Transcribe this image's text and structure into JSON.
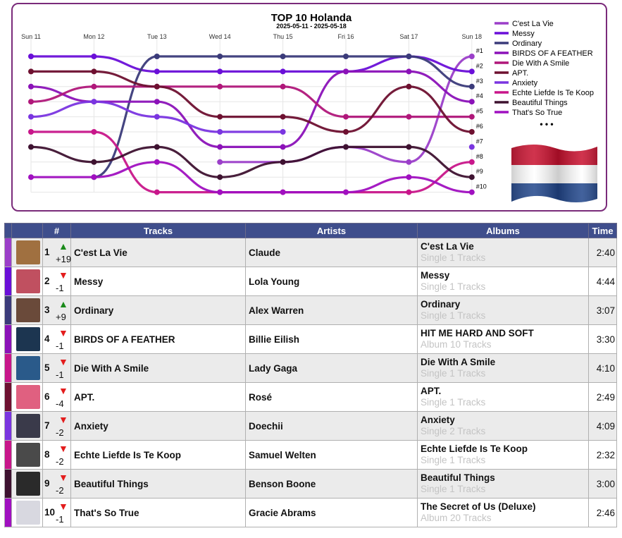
{
  "chart_data": {
    "type": "line",
    "title": "TOP 10 Holanda",
    "subtitle": "2025-05-11 - 2025-05-18",
    "x": [
      "Sun 11",
      "Mon 12",
      "Tue 13",
      "Wed 14",
      "Thu 15",
      "Fri 16",
      "Sat 17",
      "Sun 18"
    ],
    "rank_labels": [
      "#1",
      "#2",
      "#3",
      "#4",
      "#5",
      "#6",
      "#7",
      "#8",
      "#9",
      "#10"
    ],
    "legend_more": "• • •",
    "series": [
      {
        "name": "C'est La Vie",
        "color": "#9b3fc9",
        "ranks": [
          null,
          null,
          null,
          8,
          8,
          7,
          8,
          1
        ]
      },
      {
        "name": "Messy",
        "color": "#6a0fd8",
        "ranks": [
          1,
          1,
          2,
          2,
          2,
          2,
          1,
          2
        ]
      },
      {
        "name": "Ordinary",
        "color": "#3b3b7a",
        "ranks": [
          null,
          9,
          1,
          1,
          1,
          1,
          1,
          3
        ]
      },
      {
        "name": "BIRDS OF A FEATHER",
        "color": "#8b12b8",
        "ranks": [
          3,
          4,
          4,
          7,
          7,
          2,
          2,
          4
        ]
      },
      {
        "name": "Die With A Smile",
        "color": "#b0177a",
        "ranks": [
          4,
          3,
          3,
          3,
          3,
          5,
          5,
          5
        ]
      },
      {
        "name": "APT.",
        "color": "#6e1030",
        "ranks": [
          2,
          2,
          3,
          5,
          5,
          6,
          3,
          6
        ]
      },
      {
        "name": "Anxiety",
        "color": "#7a35e0",
        "ranks": [
          5,
          4,
          5,
          6,
          6,
          null,
          null,
          7
        ]
      },
      {
        "name": "Echte Liefde Is Te Koop",
        "color": "#c8168a",
        "ranks": [
          6,
          6,
          10,
          10,
          10,
          10,
          10,
          8
        ]
      },
      {
        "name": "Beautiful Things",
        "color": "#3e1230",
        "ranks": [
          7,
          8,
          7,
          9,
          8,
          7,
          7,
          9
        ]
      },
      {
        "name": "That's So True",
        "color": "#a010c0",
        "ranks": [
          9,
          9,
          8,
          10,
          10,
          10,
          9,
          10
        ]
      }
    ]
  },
  "table": {
    "headers": {
      "num": "#",
      "tracks": "Tracks",
      "artists": "Artists",
      "albums": "Albums",
      "time": "Time"
    },
    "rows": [
      {
        "rank": "1",
        "dir": "up",
        "delta": "+19",
        "track": "C'est La Vie",
        "artist": "Claude",
        "album": "C'est La Vie",
        "album_sub": "Single 1 Tracks",
        "time": "2:40",
        "color": "#9b3fc9",
        "cover": "#a07040"
      },
      {
        "rank": "2",
        "dir": "down",
        "delta": "-1",
        "track": "Messy",
        "artist": "Lola Young",
        "album": "Messy",
        "album_sub": "Single 1 Tracks",
        "time": "4:44",
        "color": "#6a0fd8",
        "cover": "#c05060"
      },
      {
        "rank": "3",
        "dir": "up",
        "delta": "+9",
        "track": "Ordinary",
        "artist": "Alex Warren",
        "album": "Ordinary",
        "album_sub": "Single 1 Tracks",
        "time": "3:07",
        "color": "#3b3b7a",
        "cover": "#6a4a3a"
      },
      {
        "rank": "4",
        "dir": "down",
        "delta": "-1",
        "track": "BIRDS OF A FEATHER",
        "artist": "Billie Eilish",
        "album": "HIT ME HARD AND SOFT",
        "album_sub": "Album 10 Tracks",
        "time": "3:30",
        "color": "#8b12b8",
        "cover": "#1c3550"
      },
      {
        "rank": "5",
        "dir": "down",
        "delta": "-1",
        "track": "Die With A Smile",
        "artist": "Lady Gaga",
        "album": "Die With A Smile",
        "album_sub": "Single 1 Tracks",
        "time": "4:10",
        "color": "#c8168a",
        "cover": "#2a5a8a"
      },
      {
        "rank": "6",
        "dir": "down",
        "delta": "-4",
        "track": "APT.",
        "artist": "Rosé",
        "album": "APT.",
        "album_sub": "Single 1 Tracks",
        "time": "2:49",
        "color": "#6e1030",
        "cover": "#e06080"
      },
      {
        "rank": "7",
        "dir": "down",
        "delta": "-2",
        "track": "Anxiety",
        "artist": "Doechii",
        "album": "Anxiety",
        "album_sub": "Single 2 Tracks",
        "time": "4:09",
        "color": "#7a35e0",
        "cover": "#3a3a4a"
      },
      {
        "rank": "8",
        "dir": "down",
        "delta": "-2",
        "track": "Echte Liefde Is Te Koop",
        "artist": "Samuel Welten",
        "album": "Echte Liefde Is Te Koop",
        "album_sub": "Single 1 Tracks",
        "time": "2:32",
        "color": "#c8168a",
        "cover": "#4a4a4a"
      },
      {
        "rank": "9",
        "dir": "down",
        "delta": "-2",
        "track": "Beautiful Things",
        "artist": "Benson Boone",
        "album": "Beautiful Things",
        "album_sub": "Single 1 Tracks",
        "time": "3:00",
        "color": "#3e1230",
        "cover": "#2a2a2a"
      },
      {
        "rank": "10",
        "dir": "down",
        "delta": "-1",
        "track": "That's So True",
        "artist": "Gracie Abrams",
        "album": "The Secret of Us (Deluxe)",
        "album_sub": "Album 20 Tracks",
        "time": "2:46",
        "color": "#a010c0",
        "cover": "#d8d8e0"
      }
    ]
  }
}
